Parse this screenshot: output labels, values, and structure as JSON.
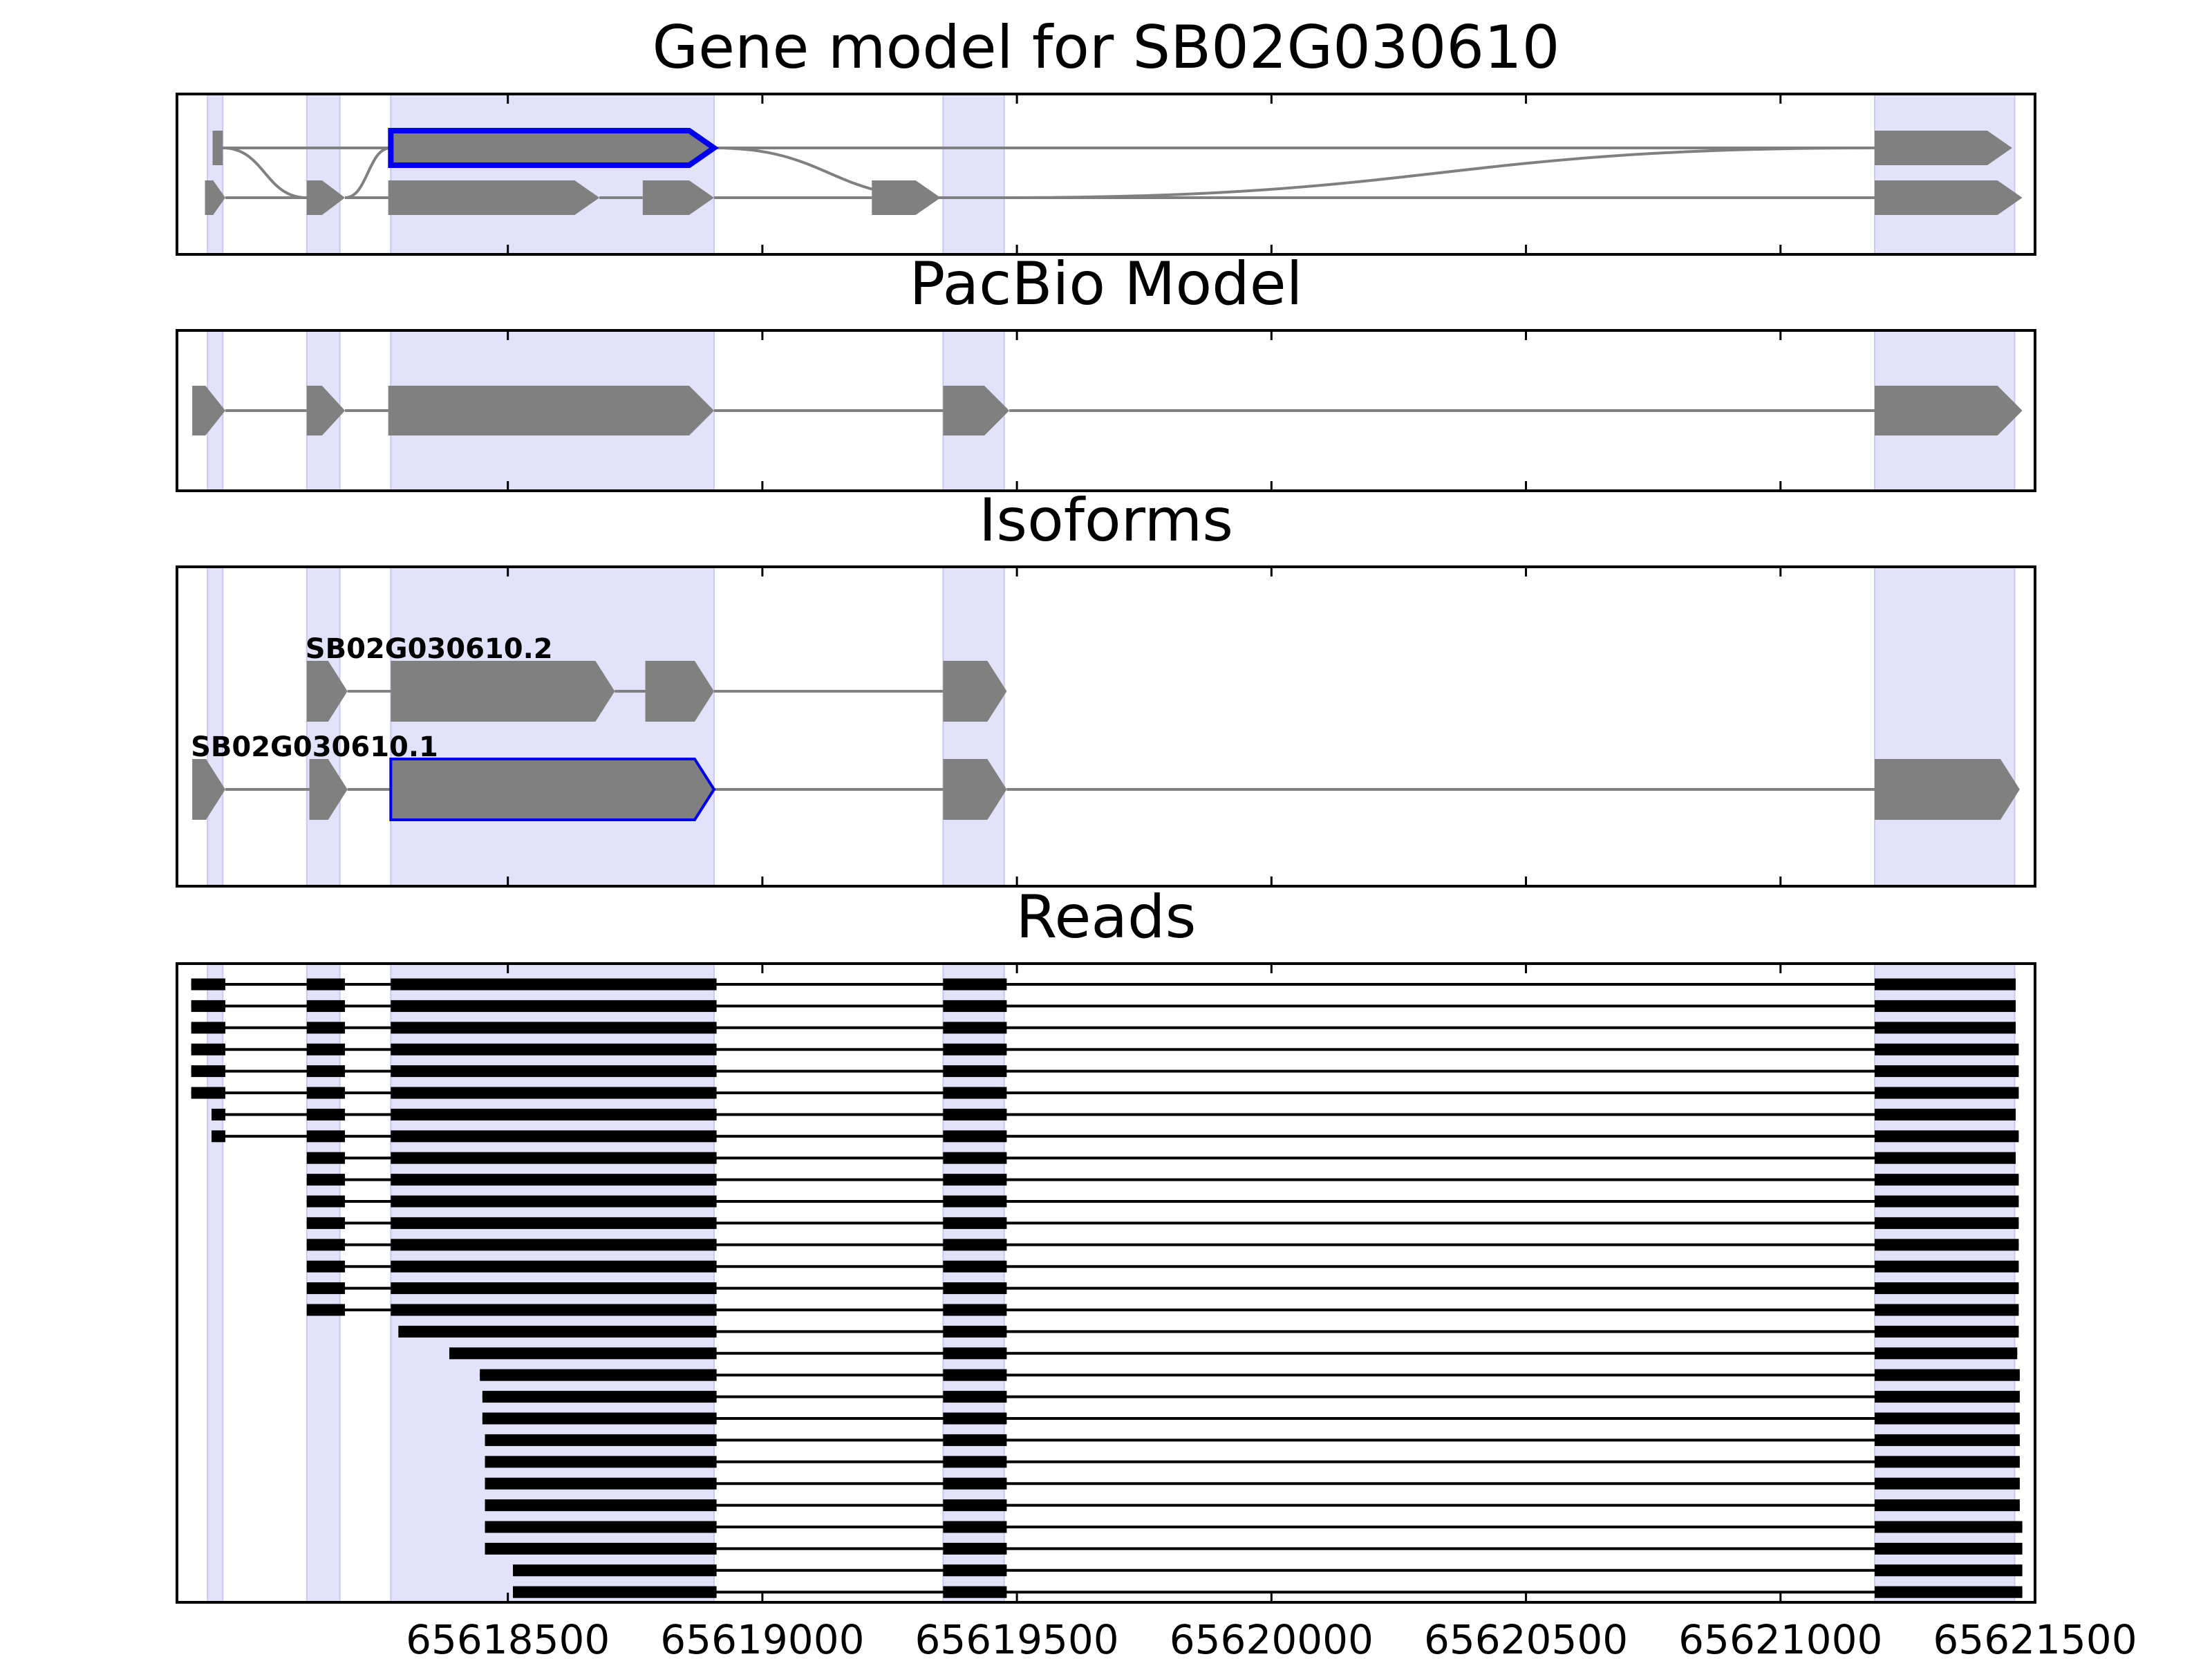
{
  "figure": {
    "background": "#ffffff",
    "shade_color": "#e2e2fb",
    "shade_edge": "#c8c8f2",
    "feature_color": "#808080",
    "highlight_color": "#0000ee",
    "read_color": "#000000",
    "intron_color": "#808080"
  },
  "chart_data": {
    "type": "gene-structure",
    "xlim": [
      65617850,
      65621500
    ],
    "xticks": [
      65618500,
      65619000,
      65619500,
      65620000,
      65620500,
      65621000,
      65621500
    ],
    "xtick_labels": [
      "65618500",
      "65619000",
      "65619500",
      "65620000",
      "65620500",
      "65621000",
      "65621500"
    ],
    "exon_shading": [
      [
        65617910,
        65617940
      ],
      [
        65618105,
        65618170
      ],
      [
        65618270,
        65618905
      ],
      [
        65619355,
        65619475
      ],
      [
        65621185,
        65621460
      ]
    ],
    "panels": [
      {
        "key": "gene_model",
        "title": "Gene model for SB02G030610",
        "type": "splice-graph",
        "tracks": [
          {
            "row": "top",
            "exons": [
              {
                "start": 65617920,
                "end": 65617940,
                "shape": "block"
              },
              {
                "start": 65618270,
                "end": 65618905,
                "shape": "arrow",
                "highlight": true
              },
              {
                "start": 65621185,
                "end": 65621455,
                "shape": "arrow"
              }
            ]
          },
          {
            "row": "bottom",
            "exons": [
              {
                "start": 65617905,
                "end": 65617945,
                "shape": "arrow"
              },
              {
                "start": 65618105,
                "end": 65618180,
                "shape": "arrow"
              },
              {
                "start": 65618265,
                "end": 65618680,
                "shape": "arrow"
              },
              {
                "start": 65618765,
                "end": 65618905,
                "shape": "arrow"
              },
              {
                "start": 65619215,
                "end": 65619350,
                "shape": "arrow"
              },
              {
                "start": 65621185,
                "end": 65621475,
                "shape": "arrow"
              }
            ]
          }
        ],
        "cross_links": [
          {
            "from": [
              65617940,
              "top"
            ],
            "to": [
              65618105,
              "bottom"
            ]
          },
          {
            "from": [
              65618180,
              "bottom"
            ],
            "to": [
              65618270,
              "top"
            ]
          },
          {
            "from": [
              65618905,
              "top"
            ],
            "to": [
              65619355,
              "bottom"
            ]
          },
          {
            "from": [
              65619475,
              "bottom"
            ],
            "to": [
              65621185,
              "top"
            ]
          }
        ]
      },
      {
        "key": "pacbio",
        "title": "PacBio Model",
        "type": "single-model",
        "exons": [
          {
            "start": 65617880,
            "end": 65617945
          },
          {
            "start": 65618105,
            "end": 65618180
          },
          {
            "start": 65618265,
            "end": 65618905
          },
          {
            "start": 65619355,
            "end": 65619485
          },
          {
            "start": 65621185,
            "end": 65621475
          }
        ]
      },
      {
        "key": "isoforms",
        "title": "Isoforms",
        "type": "isoforms",
        "isoforms": [
          {
            "name": "SB02G030610.2",
            "exons": [
              {
                "start": 65618105,
                "end": 65618185
              },
              {
                "start": 65618270,
                "end": 65618710
              },
              {
                "start": 65618770,
                "end": 65618905
              },
              {
                "start": 65619355,
                "end": 65619480
              }
            ]
          },
          {
            "name": "SB02G030610.1",
            "exons": [
              {
                "start": 65617880,
                "end": 65617945
              },
              {
                "start": 65618110,
                "end": 65618185
              },
              {
                "start": 65618270,
                "end": 65618905,
                "highlight": true
              },
              {
                "start": 65619355,
                "end": 65619480
              },
              {
                "start": 65621185,
                "end": 65621470
              }
            ]
          }
        ]
      },
      {
        "key": "reads",
        "title": "Reads",
        "type": "reads",
        "reads": [
          {
            "start": 65617878,
            "end": 65621462,
            "exons": [
              [
                65617878,
                65617945
              ],
              [
                65618105,
                65618180
              ],
              [
                65618270,
                65618910
              ],
              [
                65619355,
                65619480
              ],
              [
                65621185,
                65621462
              ]
            ]
          },
          {
            "start": 65617878,
            "end": 65621462,
            "exons": [
              [
                65617878,
                65617945
              ],
              [
                65618105,
                65618180
              ],
              [
                65618270,
                65618910
              ],
              [
                65619355,
                65619480
              ],
              [
                65621185,
                65621462
              ]
            ]
          },
          {
            "start": 65617878,
            "end": 65621462,
            "exons": [
              [
                65617878,
                65617945
              ],
              [
                65618105,
                65618180
              ],
              [
                65618270,
                65618910
              ],
              [
                65619355,
                65619480
              ],
              [
                65621185,
                65621462
              ]
            ]
          },
          {
            "start": 65617878,
            "end": 65621468,
            "exons": [
              [
                65617878,
                65617945
              ],
              [
                65618105,
                65618180
              ],
              [
                65618270,
                65618910
              ],
              [
                65619355,
                65619480
              ],
              [
                65621185,
                65621468
              ]
            ]
          },
          {
            "start": 65617878,
            "end": 65621468,
            "exons": [
              [
                65617878,
                65617945
              ],
              [
                65618105,
                65618180
              ],
              [
                65618270,
                65618910
              ],
              [
                65619355,
                65619480
              ],
              [
                65621185,
                65621468
              ]
            ]
          },
          {
            "start": 65617878,
            "end": 65621468,
            "exons": [
              [
                65617878,
                65617945
              ],
              [
                65618105,
                65618180
              ],
              [
                65618270,
                65618910
              ],
              [
                65619355,
                65619480
              ],
              [
                65621185,
                65621468
              ]
            ]
          },
          {
            "start": 65617918,
            "end": 65621462,
            "exons": [
              [
                65617918,
                65617945
              ],
              [
                65618105,
                65618180
              ],
              [
                65618270,
                65618910
              ],
              [
                65619355,
                65619480
              ],
              [
                65621185,
                65621462
              ]
            ]
          },
          {
            "start": 65617918,
            "end": 65621468,
            "exons": [
              [
                65617918,
                65617945
              ],
              [
                65618105,
                65618180
              ],
              [
                65618270,
                65618910
              ],
              [
                65619355,
                65619480
              ],
              [
                65621185,
                65621468
              ]
            ]
          },
          {
            "start": 65618105,
            "end": 65621462,
            "exons": [
              [
                65618105,
                65618180
              ],
              [
                65618270,
                65618910
              ],
              [
                65619355,
                65619480
              ],
              [
                65621185,
                65621462
              ]
            ]
          },
          {
            "start": 65618105,
            "end": 65621468,
            "exons": [
              [
                65618105,
                65618180
              ],
              [
                65618270,
                65618910
              ],
              [
                65619355,
                65619480
              ],
              [
                65621185,
                65621468
              ]
            ]
          },
          {
            "start": 65618105,
            "end": 65621468,
            "exons": [
              [
                65618105,
                65618180
              ],
              [
                65618270,
                65618910
              ],
              [
                65619355,
                65619480
              ],
              [
                65621185,
                65621468
              ]
            ]
          },
          {
            "start": 65618105,
            "end": 65621468,
            "exons": [
              [
                65618105,
                65618180
              ],
              [
                65618270,
                65618910
              ],
              [
                65619355,
                65619480
              ],
              [
                65621185,
                65621468
              ]
            ]
          },
          {
            "start": 65618105,
            "end": 65621468,
            "exons": [
              [
                65618105,
                65618180
              ],
              [
                65618270,
                65618910
              ],
              [
                65619355,
                65619480
              ],
              [
                65621185,
                65621468
              ]
            ]
          },
          {
            "start": 65618105,
            "end": 65621468,
            "exons": [
              [
                65618105,
                65618180
              ],
              [
                65618270,
                65618910
              ],
              [
                65619355,
                65619480
              ],
              [
                65621185,
                65621468
              ]
            ]
          },
          {
            "start": 65618105,
            "end": 65621468,
            "exons": [
              [
                65618105,
                65618180
              ],
              [
                65618270,
                65618910
              ],
              [
                65619355,
                65619480
              ],
              [
                65621185,
                65621468
              ]
            ]
          },
          {
            "start": 65618105,
            "end": 65621468,
            "exons": [
              [
                65618105,
                65618180
              ],
              [
                65618270,
                65618910
              ],
              [
                65619355,
                65619480
              ],
              [
                65621185,
                65621468
              ]
            ]
          },
          {
            "start": 65618285,
            "end": 65621468,
            "exons": [
              [
                65618285,
                65618910
              ],
              [
                65619355,
                65619480
              ],
              [
                65621185,
                65621468
              ]
            ]
          },
          {
            "start": 65618385,
            "end": 65621465,
            "exons": [
              [
                65618385,
                65618910
              ],
              [
                65619355,
                65619480
              ],
              [
                65621185,
                65621465
              ]
            ]
          },
          {
            "start": 65618445,
            "end": 65621470,
            "exons": [
              [
                65618445,
                65618910
              ],
              [
                65619355,
                65619480
              ],
              [
                65621185,
                65621470
              ]
            ]
          },
          {
            "start": 65618450,
            "end": 65621470,
            "exons": [
              [
                65618450,
                65618910
              ],
              [
                65619355,
                65619480
              ],
              [
                65621185,
                65621470
              ]
            ]
          },
          {
            "start": 65618450,
            "end": 65621470,
            "exons": [
              [
                65618450,
                65618910
              ],
              [
                65619355,
                65619480
              ],
              [
                65621185,
                65621470
              ]
            ]
          },
          {
            "start": 65618455,
            "end": 65621470,
            "exons": [
              [
                65618455,
                65618910
              ],
              [
                65619355,
                65619480
              ],
              [
                65621185,
                65621470
              ]
            ]
          },
          {
            "start": 65618455,
            "end": 65621470,
            "exons": [
              [
                65618455,
                65618910
              ],
              [
                65619355,
                65619480
              ],
              [
                65621185,
                65621470
              ]
            ]
          },
          {
            "start": 65618455,
            "end": 65621470,
            "exons": [
              [
                65618455,
                65618910
              ],
              [
                65619355,
                65619480
              ],
              [
                65621185,
                65621470
              ]
            ]
          },
          {
            "start": 65618455,
            "end": 65621470,
            "exons": [
              [
                65618455,
                65618910
              ],
              [
                65619355,
                65619480
              ],
              [
                65621185,
                65621470
              ]
            ]
          },
          {
            "start": 65618455,
            "end": 65621475,
            "exons": [
              [
                65618455,
                65618910
              ],
              [
                65619355,
                65619480
              ],
              [
                65621185,
                65621475
              ]
            ]
          },
          {
            "start": 65618455,
            "end": 65621475,
            "exons": [
              [
                65618455,
                65618910
              ],
              [
                65619355,
                65619480
              ],
              [
                65621185,
                65621475
              ]
            ]
          },
          {
            "start": 65618510,
            "end": 65621475,
            "exons": [
              [
                65618510,
                65618910
              ],
              [
                65619355,
                65619480
              ],
              [
                65621185,
                65621475
              ]
            ]
          },
          {
            "start": 65618510,
            "end": 65621475,
            "exons": [
              [
                65618510,
                65618910
              ],
              [
                65619355,
                65619480
              ],
              [
                65621185,
                65621475
              ]
            ]
          }
        ]
      }
    ]
  }
}
